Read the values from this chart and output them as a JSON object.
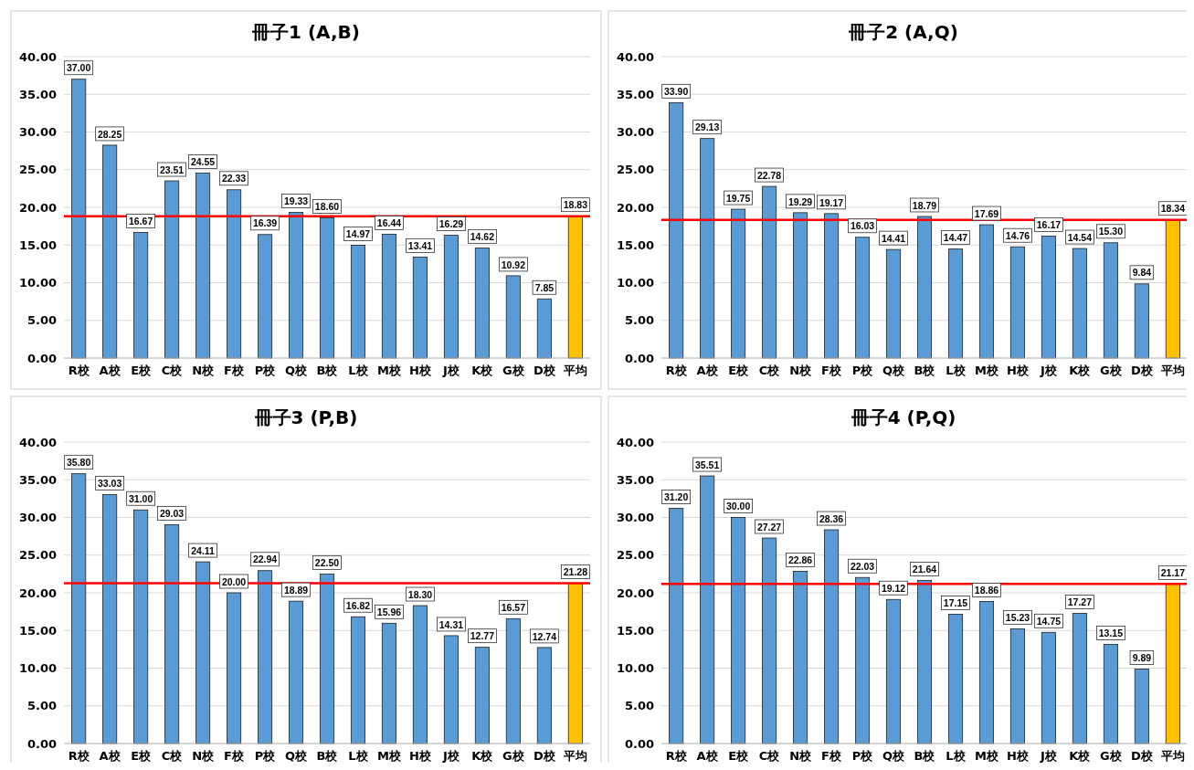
{
  "chart_data": [
    {
      "type": "bar",
      "title": "冊子1 (A,B)",
      "categories": [
        "R校",
        "A校",
        "E校",
        "C校",
        "N校",
        "F校",
        "P校",
        "Q校",
        "B校",
        "L校",
        "M校",
        "H校",
        "J校",
        "K校",
        "G校",
        "D校",
        "平均"
      ],
      "values": [
        37.0,
        28.25,
        16.67,
        23.51,
        24.55,
        22.33,
        16.39,
        19.33,
        18.6,
        14.97,
        16.44,
        13.41,
        16.29,
        14.62,
        10.92,
        7.85,
        18.83
      ],
      "value_labels": [
        "37.00",
        "28.25",
        "16.67",
        "23.51",
        "24.55",
        "22.33",
        "16.39",
        "19.33",
        "18.60",
        "14.97",
        "16.44",
        "13.41",
        "16.29",
        "14.62",
        "10.92",
        "7.85",
        "18.83"
      ],
      "colors": [
        "#5b9bd5",
        "#5b9bd5",
        "#5b9bd5",
        "#5b9bd5",
        "#5b9bd5",
        "#5b9bd5",
        "#5b9bd5",
        "#5b9bd5",
        "#5b9bd5",
        "#5b9bd5",
        "#5b9bd5",
        "#5b9bd5",
        "#5b9bd5",
        "#5b9bd5",
        "#5b9bd5",
        "#5b9bd5",
        "#ffc000"
      ],
      "ylim": [
        0,
        40
      ],
      "yticks": [
        {
          "value": 0,
          "label": "0.00"
        },
        {
          "value": 5,
          "label": "5.00"
        },
        {
          "value": 10,
          "label": "10.00"
        },
        {
          "value": 15,
          "label": "15.00"
        },
        {
          "value": 20,
          "label": "20.00"
        },
        {
          "value": 25,
          "label": "25.00"
        },
        {
          "value": 30,
          "label": "30.00"
        },
        {
          "value": 35,
          "label": "35.00"
        },
        {
          "value": 40,
          "label": "40.00"
        }
      ],
      "grid": "y",
      "ref_lines": [
        {
          "axis": "y",
          "value": 18.83,
          "color": "#ff0000"
        }
      ]
    },
    {
      "type": "bar",
      "title": "冊子2 (A,Q)",
      "categories": [
        "R校",
        "A校",
        "E校",
        "C校",
        "N校",
        "F校",
        "P校",
        "Q校",
        "B校",
        "L校",
        "M校",
        "H校",
        "J校",
        "K校",
        "G校",
        "D校",
        "平均"
      ],
      "values": [
        33.9,
        29.13,
        19.75,
        22.78,
        19.29,
        19.17,
        16.03,
        14.41,
        18.79,
        14.47,
        17.69,
        14.76,
        16.17,
        14.54,
        15.3,
        9.84,
        18.34
      ],
      "value_labels": [
        "33.90",
        "29.13",
        "19.75",
        "22.78",
        "19.29",
        "19.17",
        "16.03",
        "14.41",
        "18.79",
        "14.47",
        "17.69",
        "14.76",
        "16.17",
        "14.54",
        "15.30",
        "9.84",
        "18.34"
      ],
      "colors": [
        "#5b9bd5",
        "#5b9bd5",
        "#5b9bd5",
        "#5b9bd5",
        "#5b9bd5",
        "#5b9bd5",
        "#5b9bd5",
        "#5b9bd5",
        "#5b9bd5",
        "#5b9bd5",
        "#5b9bd5",
        "#5b9bd5",
        "#5b9bd5",
        "#5b9bd5",
        "#5b9bd5",
        "#5b9bd5",
        "#ffc000"
      ],
      "ylim": [
        0,
        40
      ],
      "yticks": [
        {
          "value": 0,
          "label": "0.00"
        },
        {
          "value": 5,
          "label": "5.00"
        },
        {
          "value": 10,
          "label": "10.00"
        },
        {
          "value": 15,
          "label": "15.00"
        },
        {
          "value": 20,
          "label": "20.00"
        },
        {
          "value": 25,
          "label": "25.00"
        },
        {
          "value": 30,
          "label": "30.00"
        },
        {
          "value": 35,
          "label": "35.00"
        },
        {
          "value": 40,
          "label": "40.00"
        }
      ],
      "grid": "y",
      "ref_lines": [
        {
          "axis": "y",
          "value": 18.34,
          "color": "#ff0000"
        }
      ]
    },
    {
      "type": "bar",
      "title": "冊子3 (P,B)",
      "categories": [
        "R校",
        "A校",
        "E校",
        "C校",
        "N校",
        "F校",
        "P校",
        "Q校",
        "B校",
        "L校",
        "M校",
        "H校",
        "J校",
        "K校",
        "G校",
        "D校",
        "平均"
      ],
      "values": [
        35.8,
        33.03,
        31.0,
        29.03,
        24.11,
        20.0,
        22.94,
        18.89,
        22.5,
        16.82,
        15.96,
        18.3,
        14.31,
        12.77,
        16.57,
        12.74,
        21.28
      ],
      "value_labels": [
        "35.80",
        "33.03",
        "31.00",
        "29.03",
        "24.11",
        "20.00",
        "22.94",
        "18.89",
        "22.50",
        "16.82",
        "15.96",
        "18.30",
        "14.31",
        "12.77",
        "16.57",
        "12.74",
        "21.28"
      ],
      "colors": [
        "#5b9bd5",
        "#5b9bd5",
        "#5b9bd5",
        "#5b9bd5",
        "#5b9bd5",
        "#5b9bd5",
        "#5b9bd5",
        "#5b9bd5",
        "#5b9bd5",
        "#5b9bd5",
        "#5b9bd5",
        "#5b9bd5",
        "#5b9bd5",
        "#5b9bd5",
        "#5b9bd5",
        "#5b9bd5",
        "#ffc000"
      ],
      "ylim": [
        0,
        40
      ],
      "yticks": [
        {
          "value": 0,
          "label": "0.00"
        },
        {
          "value": 5,
          "label": "5.00"
        },
        {
          "value": 10,
          "label": "10.00"
        },
        {
          "value": 15,
          "label": "15.00"
        },
        {
          "value": 20,
          "label": "20.00"
        },
        {
          "value": 25,
          "label": "25.00"
        },
        {
          "value": 30,
          "label": "30.00"
        },
        {
          "value": 35,
          "label": "35.00"
        },
        {
          "value": 40,
          "label": "40.00"
        }
      ],
      "grid": "y",
      "ref_lines": [
        {
          "axis": "y",
          "value": 21.28,
          "color": "#ff0000"
        }
      ]
    },
    {
      "type": "bar",
      "title": "冊子4 (P,Q)",
      "categories": [
        "R校",
        "A校",
        "E校",
        "C校",
        "N校",
        "F校",
        "P校",
        "Q校",
        "B校",
        "L校",
        "M校",
        "H校",
        "J校",
        "K校",
        "G校",
        "D校",
        "平均"
      ],
      "values": [
        31.2,
        35.51,
        30.0,
        27.27,
        22.86,
        28.36,
        22.03,
        19.12,
        21.64,
        17.15,
        18.86,
        15.23,
        14.75,
        17.27,
        13.15,
        9.89,
        21.17
      ],
      "value_labels": [
        "31.20",
        "35.51",
        "30.00",
        "27.27",
        "22.86",
        "28.36",
        "22.03",
        "19.12",
        "21.64",
        "17.15",
        "18.86",
        "15.23",
        "14.75",
        "17.27",
        "13.15",
        "9.89",
        "21.17"
      ],
      "colors": [
        "#5b9bd5",
        "#5b9bd5",
        "#5b9bd5",
        "#5b9bd5",
        "#5b9bd5",
        "#5b9bd5",
        "#5b9bd5",
        "#5b9bd5",
        "#5b9bd5",
        "#5b9bd5",
        "#5b9bd5",
        "#5b9bd5",
        "#5b9bd5",
        "#5b9bd5",
        "#5b9bd5",
        "#5b9bd5",
        "#ffc000"
      ],
      "ylim": [
        0,
        40
      ],
      "yticks": [
        {
          "value": 0,
          "label": "0.00"
        },
        {
          "value": 5,
          "label": "5.00"
        },
        {
          "value": 10,
          "label": "10.00"
        },
        {
          "value": 15,
          "label": "15.00"
        },
        {
          "value": 20,
          "label": "20.00"
        },
        {
          "value": 25,
          "label": "25.00"
        },
        {
          "value": 30,
          "label": "30.00"
        },
        {
          "value": 35,
          "label": "35.00"
        },
        {
          "value": 40,
          "label": "40.00"
        }
      ],
      "grid": "y",
      "ref_lines": [
        {
          "axis": "y",
          "value": 21.17,
          "color": "#ff0000"
        }
      ]
    }
  ]
}
